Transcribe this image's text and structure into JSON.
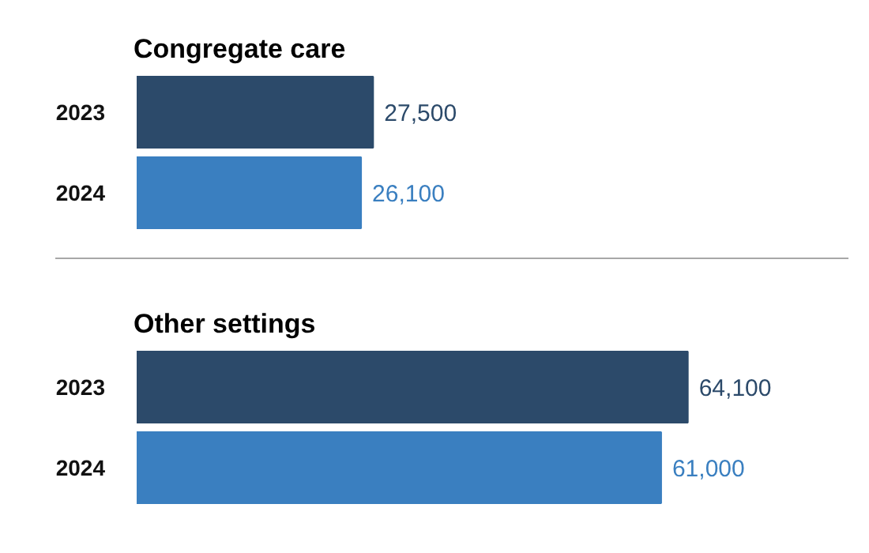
{
  "chart_data": [
    {
      "type": "bar",
      "title": "Congregate care",
      "orientation": "horizontal",
      "categories": [
        "2023",
        "2024"
      ],
      "values": [
        27500,
        26100
      ],
      "value_labels": [
        "27,500",
        "26,100"
      ],
      "colors": [
        "#2c4a6a",
        "#3a7fc0"
      ]
    },
    {
      "type": "bar",
      "title": "Other settings",
      "orientation": "horizontal",
      "categories": [
        "2023",
        "2024"
      ],
      "values": [
        64100,
        61000
      ],
      "value_labels": [
        "64,100",
        "61,000"
      ],
      "colors": [
        "#2c4a6a",
        "#3a7fc0"
      ]
    }
  ]
}
